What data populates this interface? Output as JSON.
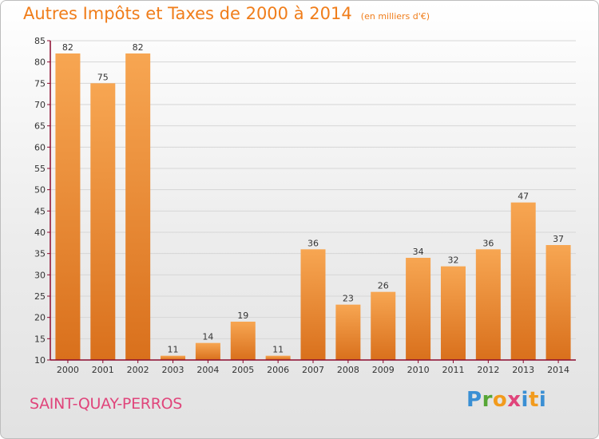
{
  "header": {
    "title": "Autres Impôts et Taxes de 2000 à 2014",
    "subtitle": "(en milliers d'€)"
  },
  "footer": {
    "commune": "SAINT-QUAY-PERROS",
    "logo": "Proxiti"
  },
  "colors": {
    "bar_light": "#f7a652",
    "bar_dark": "#d9701c",
    "title": "#f07d1a",
    "commune": "#e0457b",
    "axis": "#8b0a2e"
  },
  "chart_data": {
    "type": "bar",
    "categories": [
      "2000",
      "2001",
      "2002",
      "2003",
      "2004",
      "2005",
      "2006",
      "2007",
      "2008",
      "2009",
      "2010",
      "2011",
      "2012",
      "2013",
      "2014"
    ],
    "values": [
      82,
      75,
      82,
      11,
      14,
      19,
      11,
      36,
      23,
      26,
      34,
      32,
      36,
      47,
      37
    ],
    "title": "Autres Impôts et Taxes de 2000 à 2014",
    "subtitle": "(en milliers d'€)",
    "ylim": [
      10,
      85
    ],
    "yticks": [
      10,
      15,
      20,
      25,
      30,
      35,
      40,
      45,
      50,
      55,
      60,
      65,
      70,
      75,
      80,
      85
    ],
    "grid": true,
    "data_labels": true
  }
}
